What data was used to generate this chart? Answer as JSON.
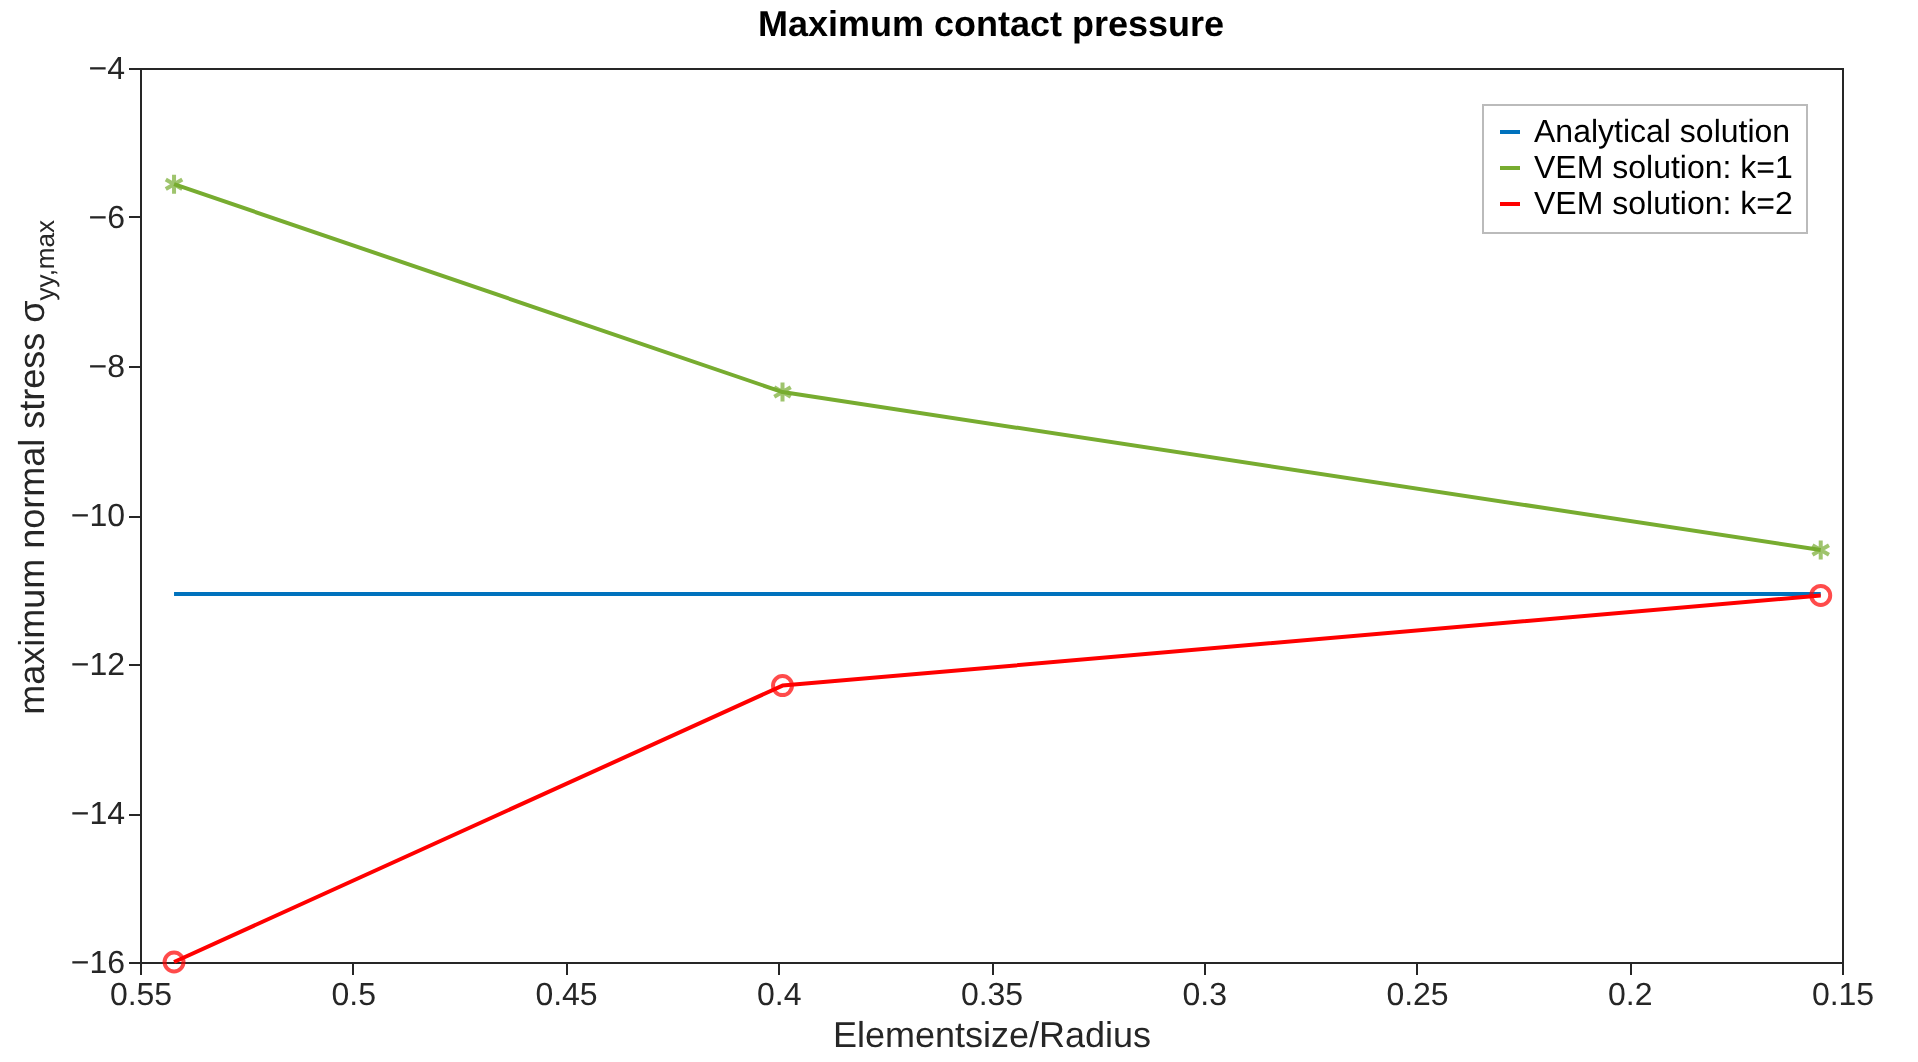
{
  "chart_data": {
    "type": "line",
    "title": "Maximum contact pressure",
    "xlabel": "Elementsize/Radius",
    "ylabel": "maximum normal stress σ$_{yy,max}$",
    "x": [
      0.542,
      0.399,
      0.155
    ],
    "series": [
      {
        "name": "Analytical solution",
        "color": "#0072bd",
        "values": [
          -11.06,
          -11.06,
          -11.06
        ],
        "marker": "none"
      },
      {
        "name": "VEM solution: k=1",
        "color": "#77ac30",
        "values": [
          -5.56,
          -8.35,
          -10.47
        ],
        "marker": "cross"
      },
      {
        "name": "VEM solution: k=2",
        "color": "#ff0000",
        "values": [
          -16,
          -12.29,
          -11.08
        ],
        "marker": "circle"
      }
    ],
    "xlim": [
      0.55,
      0.15
    ],
    "xticks": [
      0.55,
      0.5,
      0.45,
      0.4,
      0.35,
      0.3,
      0.25,
      0.2,
      0.15
    ],
    "ylim": [
      -16,
      -4
    ],
    "yticks": [
      -16,
      -14,
      -12,
      -10,
      -8,
      -6,
      -4
    ],
    "grid": false,
    "legend": "top right"
  }
}
